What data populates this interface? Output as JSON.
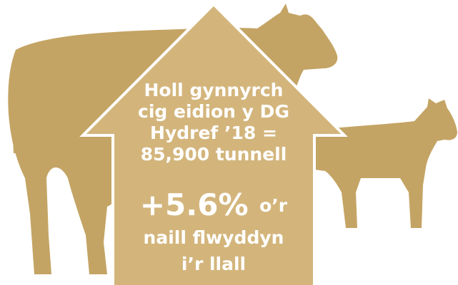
{
  "headline": {
    "lines": [
      "Holl gynnyrch",
      "cig eidion y DG",
      "Hydref ’18 =",
      "85,900 tunnell"
    ]
  },
  "change": {
    "value": "+5.6%",
    "suffix": "o’r",
    "lines": [
      "naill flwyddyn",
      "i’r llall"
    ]
  }
}
